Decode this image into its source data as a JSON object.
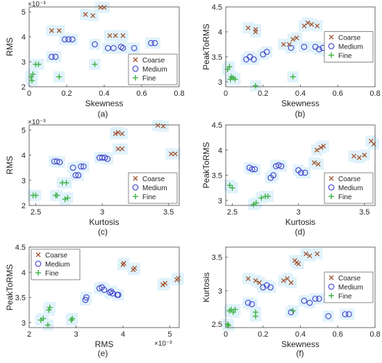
{
  "legend": {
    "labels": [
      "Coarse",
      "Medium",
      "Fine"
    ]
  },
  "colors": {
    "Coarse": "#a0522d",
    "Medium": "#4040c8",
    "Fine": "#3cb043",
    "glow": "#c8e8f8"
  },
  "chart_data": [
    {
      "type": "scatter",
      "caption": "(a)",
      "xlabel": "Skewness",
      "ylabel": "RMS",
      "xlim": [
        0,
        0.8
      ],
      "ylim": [
        2.0,
        5.2
      ],
      "xlabel_exponent": "",
      "ylabel_exponent": "×10⁻³",
      "xticks": [
        "0",
        "0.2",
        "0.4",
        "0.6",
        "0.8"
      ],
      "yticks": [
        "2",
        "3",
        "4",
        "5"
      ],
      "legend_position": "lower-right",
      "series": [
        {
          "name": "Coarse",
          "points": [
            [
              0.12,
              4.25
            ],
            [
              0.16,
              4.25
            ],
            [
              0.3,
              4.9
            ],
            [
              0.34,
              4.85
            ],
            [
              0.38,
              5.18
            ],
            [
              0.4,
              5.18
            ],
            [
              0.43,
              4.05
            ],
            [
              0.46,
              4.05
            ],
            [
              0.5,
              4.05
            ]
          ]
        },
        {
          "name": "Medium",
          "points": [
            [
              0.12,
              3.2
            ],
            [
              0.14,
              3.2
            ],
            [
              0.19,
              3.9
            ],
            [
              0.21,
              3.9
            ],
            [
              0.23,
              3.9
            ],
            [
              0.35,
              3.7
            ],
            [
              0.42,
              3.55
            ],
            [
              0.45,
              3.55
            ],
            [
              0.49,
              3.6
            ],
            [
              0.5,
              3.55
            ],
            [
              0.56,
              3.55
            ],
            [
              0.65,
              3.75
            ],
            [
              0.67,
              3.75
            ]
          ]
        },
        {
          "name": "Fine",
          "points": [
            [
              0.01,
              2.4
            ],
            [
              0.015,
              2.25
            ],
            [
              0.02,
              2.5
            ],
            [
              0.035,
              2.9
            ],
            [
              0.05,
              2.9
            ],
            [
              0.16,
              2.4
            ],
            [
              0.35,
              2.9
            ]
          ]
        }
      ]
    },
    {
      "type": "scatter",
      "caption": "(b)",
      "xlabel": "Skewness",
      "ylabel": "PeakToRMS",
      "xlim": [
        0,
        0.8
      ],
      "ylim": [
        2.9,
        4.5
      ],
      "xlabel_exponent": "",
      "ylabel_exponent": "",
      "xticks": [
        "0",
        "0.2",
        "0.4",
        "0.6",
        "0.8"
      ],
      "yticks": [
        "3",
        "3.5",
        "4",
        "4.5"
      ],
      "legend_position": "center-right",
      "series": [
        {
          "name": "Coarse",
          "points": [
            [
              0.12,
              4.08
            ],
            [
              0.16,
              4.05
            ],
            [
              0.16,
              4.0
            ],
            [
              0.31,
              3.75
            ],
            [
              0.34,
              3.75
            ],
            [
              0.36,
              3.85
            ],
            [
              0.38,
              3.88
            ],
            [
              0.42,
              4.12
            ],
            [
              0.44,
              4.18
            ],
            [
              0.46,
              4.15
            ],
            [
              0.49,
              4.12
            ]
          ]
        },
        {
          "name": "Medium",
          "points": [
            [
              0.11,
              3.45
            ],
            [
              0.13,
              3.5
            ],
            [
              0.15,
              3.45
            ],
            [
              0.2,
              3.55
            ],
            [
              0.22,
              3.6
            ],
            [
              0.35,
              3.68
            ],
            [
              0.42,
              3.7
            ],
            [
              0.48,
              3.7
            ],
            [
              0.5,
              3.65
            ],
            [
              0.52,
              3.68
            ],
            [
              0.55,
              3.62
            ],
            [
              0.64,
              3.65
            ],
            [
              0.66,
              3.65
            ]
          ]
        },
        {
          "name": "Fine",
          "points": [
            [
              0.01,
              3.25
            ],
            [
              0.02,
              3.3
            ],
            [
              0.025,
              3.05
            ],
            [
              0.03,
              3.1
            ],
            [
              0.04,
              3.08
            ],
            [
              0.05,
              3.05
            ],
            [
              0.16,
              2.92
            ],
            [
              0.36,
              3.1
            ]
          ]
        }
      ]
    },
    {
      "type": "scatter",
      "caption": "(c)",
      "xlabel": "Kurtosis",
      "ylabel": "RMS",
      "xlim": [
        2.45,
        3.58
      ],
      "ylim": [
        2.0,
        5.2
      ],
      "xlabel_exponent": "",
      "ylabel_exponent": "×10⁻³",
      "xticks": [
        "2.5",
        "3",
        "3.5"
      ],
      "yticks": [
        "2",
        "3",
        "4",
        "5"
      ],
      "legend_position": "lower-right",
      "series": [
        {
          "name": "Coarse",
          "points": [
            [
              3.1,
              4.85
            ],
            [
              3.12,
              4.9
            ],
            [
              3.15,
              4.85
            ],
            [
              3.12,
              4.25
            ],
            [
              3.15,
              4.25
            ],
            [
              3.42,
              5.18
            ],
            [
              3.46,
              5.15
            ],
            [
              3.52,
              4.05
            ],
            [
              3.55,
              4.05
            ]
          ]
        },
        {
          "name": "Medium",
          "points": [
            [
              2.64,
              3.75
            ],
            [
              2.66,
              3.75
            ],
            [
              2.68,
              3.72
            ],
            [
              2.78,
              3.5
            ],
            [
              2.8,
              3.2
            ],
            [
              2.82,
              3.2
            ],
            [
              2.84,
              3.55
            ],
            [
              2.86,
              3.55
            ],
            [
              2.98,
              3.9
            ],
            [
              3.0,
              3.9
            ],
            [
              3.02,
              3.9
            ],
            [
              3.04,
              3.85
            ]
          ]
        },
        {
          "name": "Fine",
          "points": [
            [
              2.48,
              2.4
            ],
            [
              2.5,
              2.4
            ],
            [
              2.65,
              2.4
            ],
            [
              2.66,
              2.4
            ],
            [
              2.7,
              2.9
            ],
            [
              2.73,
              2.9
            ],
            [
              2.72,
              2.25
            ],
            [
              2.74,
              2.3
            ]
          ]
        }
      ]
    },
    {
      "type": "scatter",
      "caption": "(d)",
      "xlabel": "Kurtosis",
      "ylabel": "PeakToRMS",
      "xlim": [
        2.45,
        3.58
      ],
      "ylim": [
        2.9,
        4.5
      ],
      "xlabel_exponent": "",
      "ylabel_exponent": "",
      "xticks": [
        "2.5",
        "3",
        "3.5"
      ],
      "yticks": [
        "3",
        "3.5",
        "4",
        "4.5"
      ],
      "legend_position": "lower-right",
      "series": [
        {
          "name": "Coarse",
          "points": [
            [
              3.12,
              3.75
            ],
            [
              3.15,
              3.72
            ],
            [
              3.14,
              4.0
            ],
            [
              3.17,
              4.05
            ],
            [
              3.19,
              4.08
            ],
            [
              3.42,
              3.88
            ],
            [
              3.46,
              3.85
            ],
            [
              3.5,
              3.9
            ],
            [
              3.55,
              4.18
            ],
            [
              3.57,
              4.12
            ]
          ]
        },
        {
          "name": "Medium",
          "points": [
            [
              2.63,
              3.65
            ],
            [
              2.65,
              3.62
            ],
            [
              2.67,
              3.62
            ],
            [
              2.79,
              3.45
            ],
            [
              2.81,
              3.5
            ],
            [
              2.83,
              3.68
            ],
            [
              2.85,
              3.7
            ],
            [
              2.87,
              3.68
            ],
            [
              3.0,
              3.6
            ],
            [
              3.02,
              3.55
            ],
            [
              3.05,
              3.55
            ]
          ]
        },
        {
          "name": "Fine",
          "points": [
            [
              2.48,
              3.3
            ],
            [
              2.5,
              3.25
            ],
            [
              2.66,
              2.92
            ],
            [
              2.68,
              2.95
            ],
            [
              2.72,
              3.05
            ],
            [
              2.75,
              3.08
            ],
            [
              2.77,
              3.08
            ]
          ]
        }
      ]
    },
    {
      "type": "scatter",
      "caption": "(e)",
      "xlabel": "RMS",
      "ylabel": "PeakToRMS",
      "xlim": [
        2.0,
        5.2
      ],
      "ylim": [
        2.9,
        4.5
      ],
      "xlabel_exponent": "×10⁻³",
      "ylabel_exponent": "",
      "xticks": [
        "2",
        "3",
        "4",
        "5"
      ],
      "yticks": [
        "3",
        "3.5",
        "4",
        "4.5"
      ],
      "legend_position": "top-left",
      "series": [
        {
          "name": "Coarse",
          "points": [
            [
              4.0,
              4.15
            ],
            [
              4.02,
              4.18
            ],
            [
              4.22,
              4.05
            ],
            [
              4.25,
              4.08
            ],
            [
              4.85,
              3.75
            ],
            [
              4.9,
              3.78
            ],
            [
              5.15,
              3.85
            ],
            [
              5.18,
              3.88
            ]
          ]
        },
        {
          "name": "Medium",
          "points": [
            [
              3.2,
              3.45
            ],
            [
              3.22,
              3.5
            ],
            [
              3.5,
              3.68
            ],
            [
              3.55,
              3.7
            ],
            [
              3.6,
              3.65
            ],
            [
              3.72,
              3.6
            ],
            [
              3.75,
              3.62
            ],
            [
              3.78,
              3.58
            ],
            [
              3.88,
              3.55
            ],
            [
              3.9,
              3.55
            ]
          ]
        },
        {
          "name": "Fine",
          "points": [
            [
              2.25,
              3.05
            ],
            [
              2.3,
              3.08
            ],
            [
              2.4,
              2.95
            ],
            [
              2.42,
              3.25
            ],
            [
              2.44,
              3.3
            ],
            [
              2.9,
              3.05
            ],
            [
              2.92,
              3.08
            ]
          ]
        }
      ]
    },
    {
      "type": "scatter",
      "caption": "(f)",
      "xlabel": "Skewness",
      "ylabel": "Kurtosis",
      "xlim": [
        0,
        0.8
      ],
      "ylim": [
        2.45,
        3.65
      ],
      "xlabel_exponent": "",
      "ylabel_exponent": "",
      "xticks": [
        "0",
        "0.2",
        "0.4",
        "0.6",
        "0.8"
      ],
      "yticks": [
        "2.5",
        "3",
        "3.5"
      ],
      "legend_position": "center-right",
      "series": [
        {
          "name": "Coarse",
          "points": [
            [
              0.12,
              3.18
            ],
            [
              0.16,
              3.15
            ],
            [
              0.18,
              3.12
            ],
            [
              0.31,
              3.15
            ],
            [
              0.33,
              3.18
            ],
            [
              0.35,
              3.12
            ],
            [
              0.37,
              3.45
            ],
            [
              0.38,
              3.42
            ],
            [
              0.39,
              3.4
            ],
            [
              0.43,
              3.55
            ],
            [
              0.45,
              3.52
            ],
            [
              0.49,
              3.55
            ]
          ]
        },
        {
          "name": "Medium",
          "points": [
            [
              0.12,
              2.82
            ],
            [
              0.14,
              2.8
            ],
            [
              0.2,
              3.05
            ],
            [
              0.22,
              3.08
            ],
            [
              0.24,
              3.05
            ],
            [
              0.35,
              2.68
            ],
            [
              0.42,
              2.85
            ],
            [
              0.45,
              2.82
            ],
            [
              0.48,
              2.88
            ],
            [
              0.5,
              2.88
            ],
            [
              0.55,
              2.62
            ],
            [
              0.64,
              2.65
            ],
            [
              0.66,
              2.65
            ]
          ]
        },
        {
          "name": "Fine",
          "points": [
            [
              0.01,
              2.5
            ],
            [
              0.015,
              2.48
            ],
            [
              0.02,
              2.7
            ],
            [
              0.03,
              2.72
            ],
            [
              0.04,
              2.68
            ],
            [
              0.05,
              2.72
            ],
            [
              0.16,
              2.68
            ],
            [
              0.16,
              2.62
            ],
            [
              0.36,
              2.7
            ]
          ]
        }
      ]
    }
  ]
}
